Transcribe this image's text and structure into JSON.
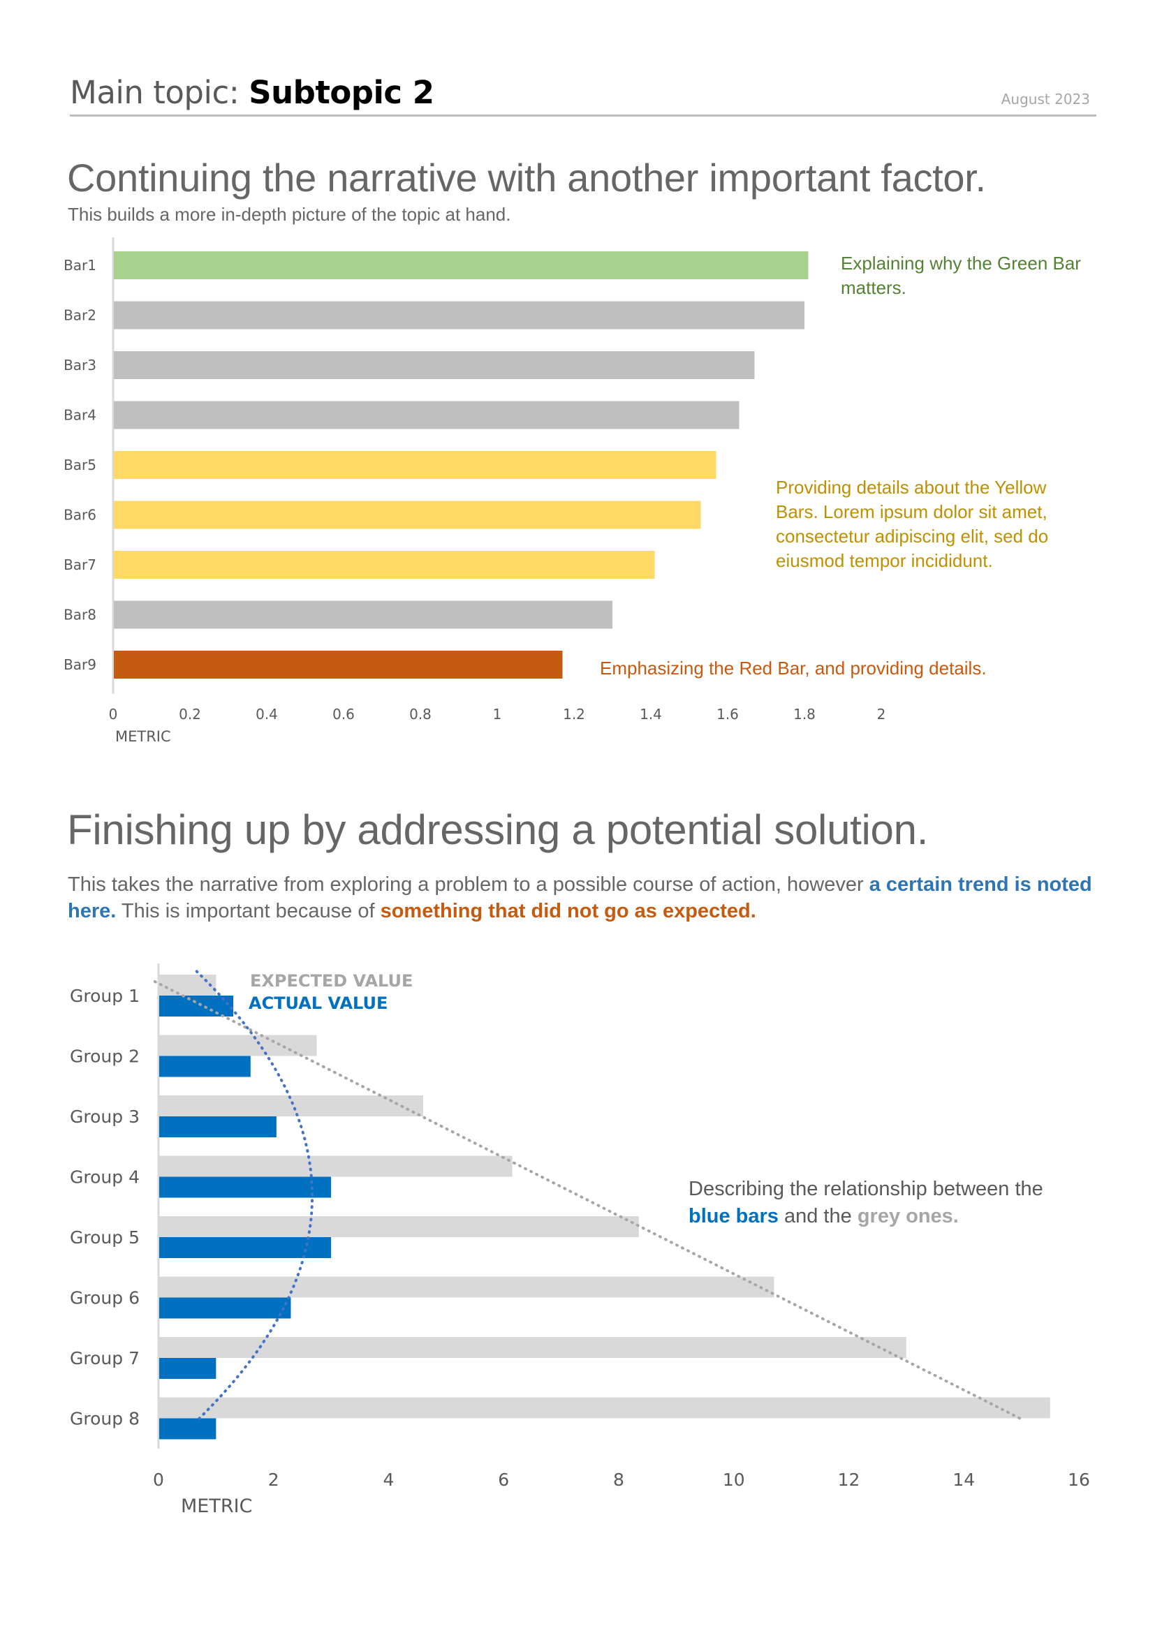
{
  "header": {
    "topic_prefix": "Main topic: ",
    "topic_bold": "Subtopic 2",
    "date": "August 2023"
  },
  "section1": {
    "title": "Continuing the narrative with another important factor.",
    "subtitle": "This builds a more in-depth picture of the topic at hand.",
    "notes": {
      "green": "Explaining why the Green Bar matters.",
      "yellow": "Providing details about the Yellow Bars. Lorem ipsum dolor sit amet, consectetur adipiscing elit, sed do eiusmod tempor incididunt.",
      "red": "Emphasizing the Red Bar, and providing details."
    }
  },
  "section2": {
    "title": "Finishing up by addressing a potential solution.",
    "para_1": "This takes the narrative from exploring a problem to a possible course of action, however ",
    "para_2_blue": "a certain trend is noted here.",
    "para_3": " This is important because of ",
    "para_4_orange": "something that did not go as expected.",
    "note_1": "Describing the relationship between the ",
    "note_blue": "blue bars",
    "note_2": " and the ",
    "note_grey": "grey ones."
  },
  "colors": {
    "green": "#a9d18e",
    "grey": "#bfbfbf",
    "yellow": "#ffd966",
    "red": "#c55a11",
    "expected": "#d9d9d9",
    "actual": "#0070c0",
    "expected_trend": "#a6a6a6",
    "actual_trend": "#4472c4"
  },
  "chart_data": [
    {
      "type": "bar",
      "orientation": "horizontal",
      "categories": [
        "Bar1",
        "Bar2",
        "Bar3",
        "Bar4",
        "Bar5",
        "Bar6",
        "Bar7",
        "Bar8",
        "Bar9"
      ],
      "values": [
        1.81,
        1.8,
        1.67,
        1.63,
        1.57,
        1.53,
        1.41,
        1.3,
        1.17
      ],
      "bar_colors": [
        "green",
        "grey",
        "grey",
        "grey",
        "yellow",
        "yellow",
        "yellow",
        "grey",
        "red"
      ],
      "xlabel": "METRIC",
      "ylabel": "",
      "xlim": [
        0,
        2
      ],
      "xticks": [
        "0",
        "0.2",
        "0.4",
        "0.6",
        "0.8",
        "1",
        "1.2",
        "1.4",
        "1.6",
        "1.8",
        "2"
      ],
      "grid": false
    },
    {
      "type": "bar",
      "orientation": "horizontal",
      "categories": [
        "Group 1",
        "Group 2",
        "Group 3",
        "Group 4",
        "Group 5",
        "Group 6",
        "Group 7",
        "Group 8"
      ],
      "series": [
        {
          "name": "EXPECTED VALUE",
          "values": [
            1.0,
            2.75,
            4.6,
            6.15,
            8.35,
            10.7,
            13.0,
            15.5
          ]
        },
        {
          "name": "ACTUAL VALUE",
          "values": [
            1.3,
            1.6,
            2.05,
            3.0,
            3.0,
            2.3,
            1.0,
            1.0
          ]
        }
      ],
      "trendlines": [
        {
          "series": "EXPECTED VALUE",
          "style": "dotted",
          "shape": "linear"
        },
        {
          "series": "ACTUAL VALUE",
          "style": "dotted",
          "shape": "polynomial"
        }
      ],
      "xlabel": "METRIC",
      "ylabel": "",
      "xlim": [
        0,
        16
      ],
      "xticks": [
        "0",
        "2",
        "4",
        "6",
        "8",
        "10",
        "12",
        "14",
        "16"
      ],
      "legend": "top-left-inside",
      "grid": false
    }
  ]
}
